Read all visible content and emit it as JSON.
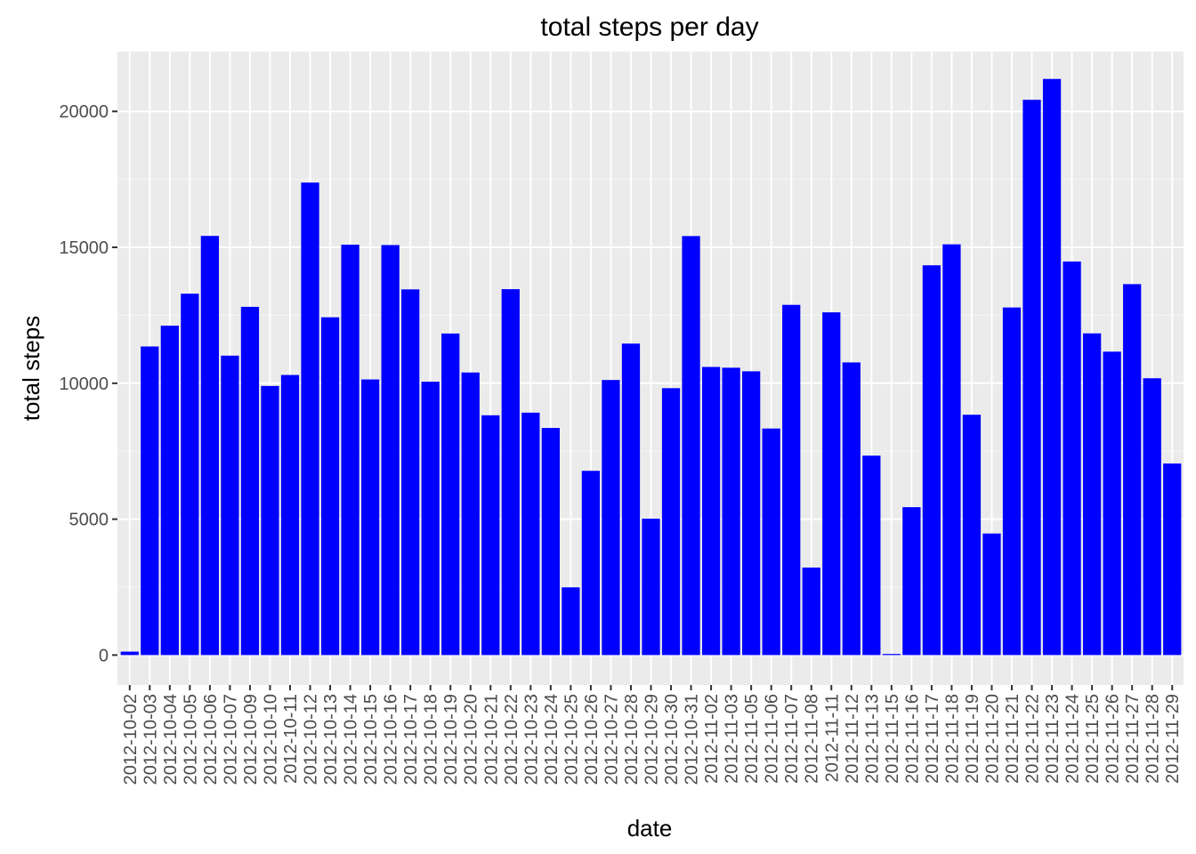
{
  "chart_data": {
    "type": "bar",
    "title": "total steps per day",
    "xlabel": "date",
    "ylabel": "total steps",
    "ylim": [
      -1100,
      22200
    ],
    "yticks": [
      0,
      5000,
      10000,
      15000,
      20000
    ],
    "grid": true,
    "legend": "none",
    "colors": {
      "bar": "#0000ff",
      "panel": "#ebebeb",
      "grid_major": "#ffffff",
      "grid_minor": "#f5f5f5",
      "tick_text": "#4d4d4d"
    },
    "categories": [
      "2012-10-02",
      "2012-10-03",
      "2012-10-04",
      "2012-10-05",
      "2012-10-06",
      "2012-10-07",
      "2012-10-09",
      "2012-10-10",
      "2012-10-11",
      "2012-10-12",
      "2012-10-13",
      "2012-10-14",
      "2012-10-15",
      "2012-10-16",
      "2012-10-17",
      "2012-10-18",
      "2012-10-19",
      "2012-10-20",
      "2012-10-21",
      "2012-10-22",
      "2012-10-23",
      "2012-10-24",
      "2012-10-25",
      "2012-10-26",
      "2012-10-27",
      "2012-10-28",
      "2012-10-29",
      "2012-10-30",
      "2012-10-31",
      "2012-11-02",
      "2012-11-03",
      "2012-11-05",
      "2012-11-06",
      "2012-11-07",
      "2012-11-08",
      "2012-11-11",
      "2012-11-12",
      "2012-11-13",
      "2012-11-15",
      "2012-11-16",
      "2012-11-17",
      "2012-11-18",
      "2012-11-19",
      "2012-11-20",
      "2012-11-21",
      "2012-11-22",
      "2012-11-23",
      "2012-11-24",
      "2012-11-25",
      "2012-11-26",
      "2012-11-27",
      "2012-11-28",
      "2012-11-29"
    ],
    "values": [
      126,
      11352,
      12116,
      13294,
      15420,
      11015,
      12811,
      9900,
      10304,
      17382,
      12426,
      15098,
      10139,
      15084,
      13452,
      10056,
      11829,
      10395,
      8821,
      13460,
      8918,
      8355,
      2492,
      6778,
      10119,
      11458,
      5018,
      9819,
      15414,
      10600,
      10571,
      10439,
      8334,
      12883,
      3219,
      12608,
      10765,
      7336,
      41,
      5441,
      14339,
      15110,
      8841,
      4472,
      12787,
      20427,
      21194,
      14478,
      11834,
      11162,
      13646,
      10183,
      7047
    ]
  }
}
